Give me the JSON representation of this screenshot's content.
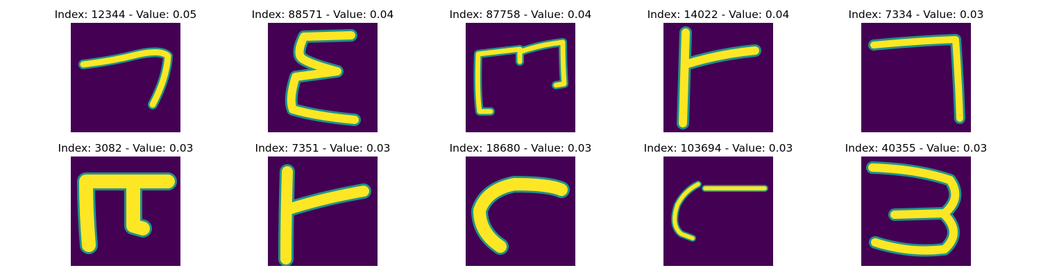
{
  "colors": {
    "background": "#440154",
    "stroke": "#fde725",
    "edge": "#21918c"
  },
  "figure": {
    "panels": [
      {
        "title": "Index: 12344 - Value: 0.05",
        "glyph": "stroke-7"
      },
      {
        "title": "Index: 88571 - Value: 0.04",
        "glyph": "epsilon-like"
      },
      {
        "title": "Index: 87758 - Value: 0.04",
        "glyph": "bracket-m"
      },
      {
        "title": "Index: 14022 - Value: 0.04",
        "glyph": "r-like"
      },
      {
        "title": "Index: 7334 - Value: 0.03",
        "glyph": "stroke-7"
      },
      {
        "title": "Index: 3082 - Value: 0.03",
        "glyph": "pi-like"
      },
      {
        "title": "Index: 7351 - Value: 0.03",
        "glyph": "r-like"
      },
      {
        "title": "Index: 18680 - Value: 0.03",
        "glyph": "c-like"
      },
      {
        "title": "Index: 103694 - Value: 0.03",
        "glyph": "c-stroke"
      },
      {
        "title": "Index: 40355 - Value: 0.03",
        "glyph": "three-like"
      }
    ]
  }
}
